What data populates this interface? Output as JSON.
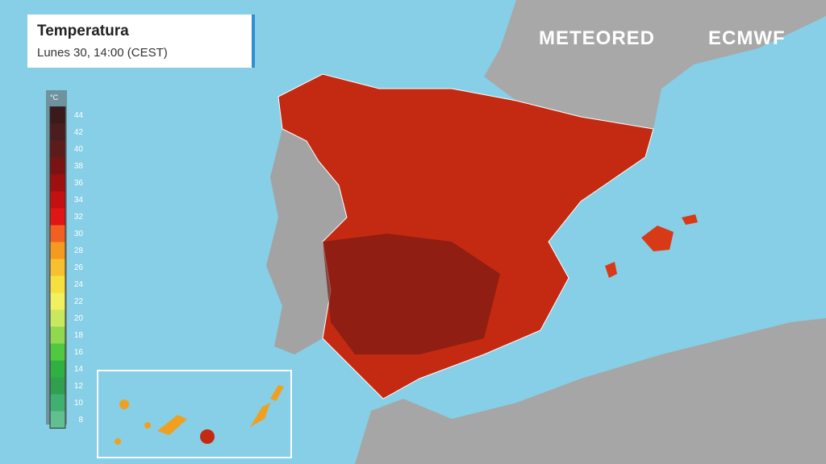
{
  "header": {
    "title": "Temperatura",
    "subtitle": "Lunes 30, 14:00 (CEST)"
  },
  "brands": [
    "METEORED",
    "ECMWF"
  ],
  "legend": {
    "unit": "°C",
    "ticks": [
      44,
      42,
      40,
      38,
      36,
      34,
      32,
      30,
      28,
      26,
      24,
      22,
      20,
      18,
      16,
      14,
      12,
      10,
      8
    ],
    "colors": [
      "#3a1a1a",
      "#4a1e1e",
      "#5c1c1c",
      "#7a1414",
      "#9e1010",
      "#c41010",
      "#e01515",
      "#f06020",
      "#f59a20",
      "#f6c030",
      "#f5e040",
      "#f0f060",
      "#c8e860",
      "#90d850",
      "#50c840",
      "#30b040",
      "#30a050",
      "#40b070",
      "#60c090"
    ]
  }
}
